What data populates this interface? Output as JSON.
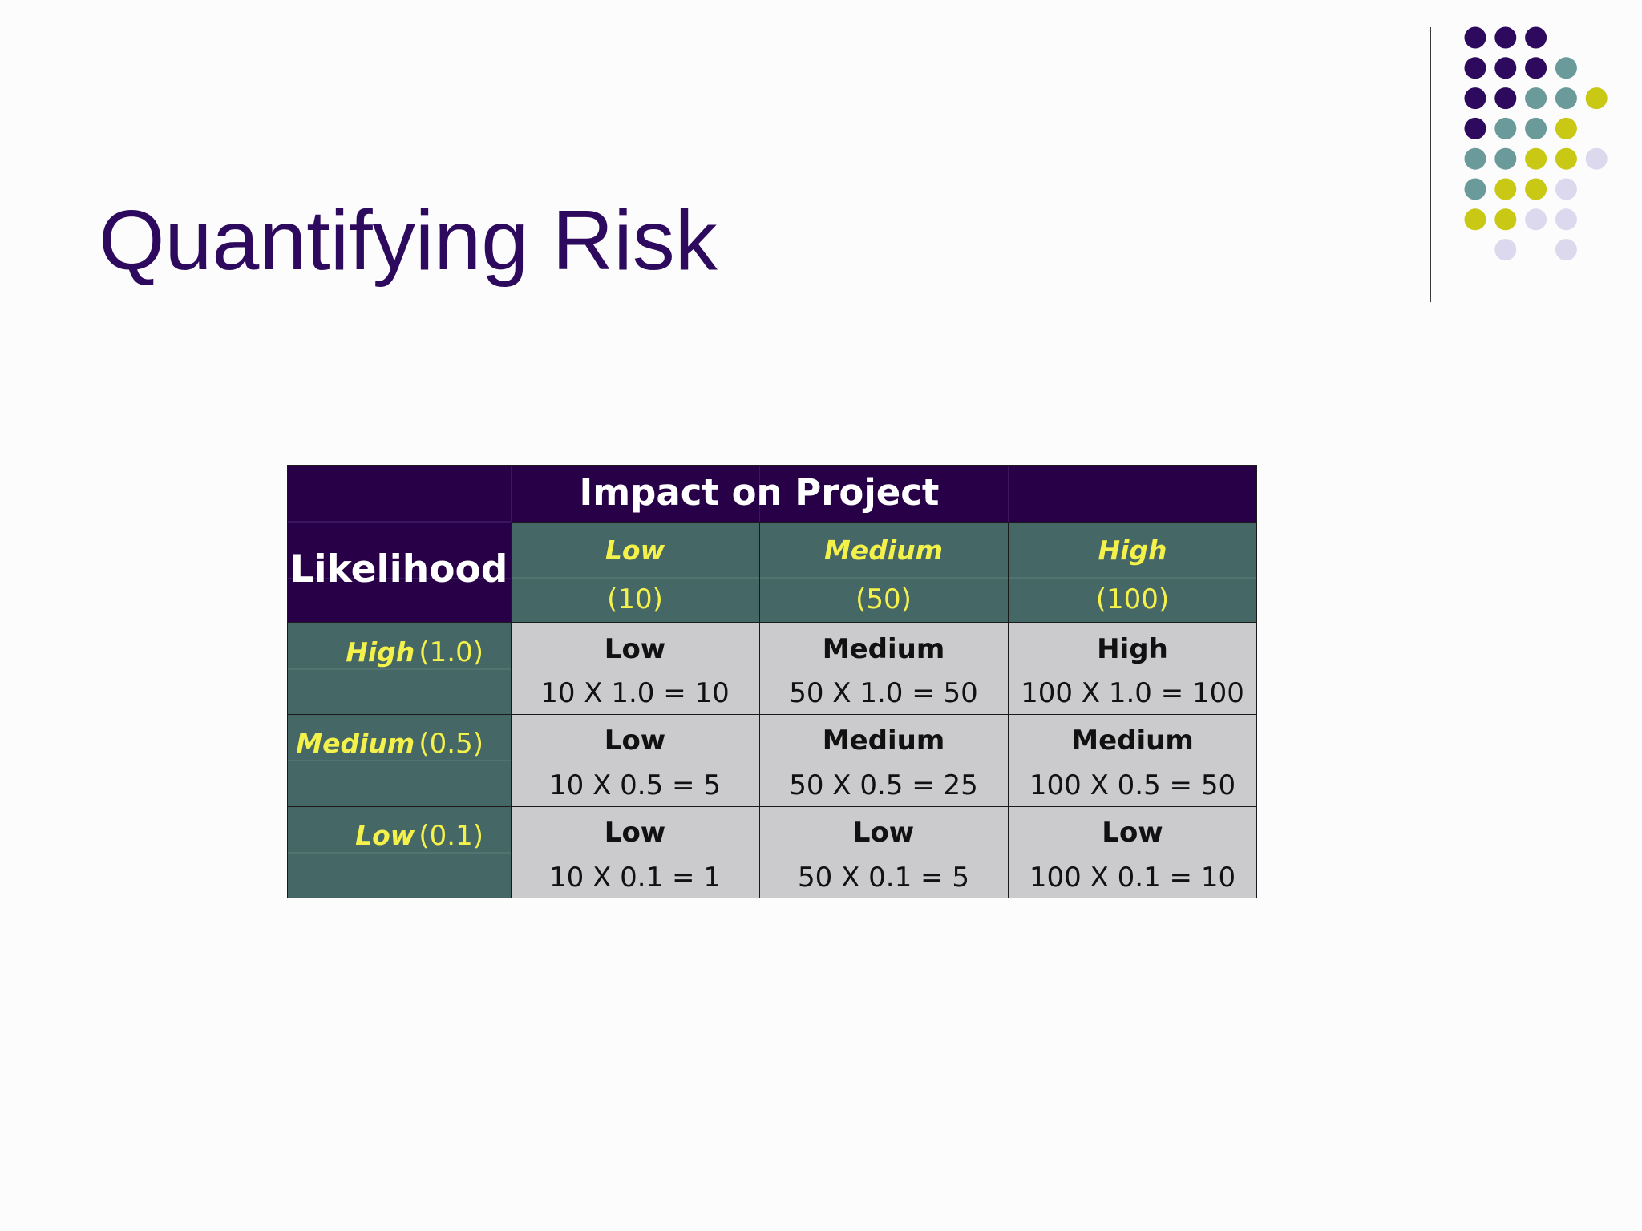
{
  "slide": {
    "title": "Quantifying Risk"
  },
  "table": {
    "header": {
      "impact_label": "Impact on Project",
      "likelihood_label": "Likelihood"
    },
    "impact_columns": [
      {
        "level": "Low",
        "value": "(10)"
      },
      {
        "level": "Medium",
        "value": "(50)"
      },
      {
        "level": "High",
        "value": "(100)"
      }
    ],
    "rows": [
      {
        "likelihood": "High",
        "likelihood_value": "(1.0)",
        "cells": [
          {
            "rating": "Low",
            "calc": "10 X 1.0 = 10"
          },
          {
            "rating": "Medium",
            "calc": "50 X 1.0 = 50"
          },
          {
            "rating": "High",
            "calc": "100 X 1.0 = 100"
          }
        ]
      },
      {
        "likelihood": "Medium",
        "likelihood_value": "(0.5)",
        "cells": [
          {
            "rating": "Low",
            "calc": "10 X 0.5 = 5"
          },
          {
            "rating": "Medium",
            "calc": "50 X 0.5 = 25"
          },
          {
            "rating": "Medium",
            "calc": "100 X 0.5 = 50"
          }
        ]
      },
      {
        "likelihood": "Low",
        "likelihood_value": "(0.1)",
        "cells": [
          {
            "rating": "Low",
            "calc": "10 X 0.1 = 1"
          },
          {
            "rating": "Low",
            "calc": "50 X 0.1 = 5"
          },
          {
            "rating": "Low",
            "calc": "100 X 0.1 = 10"
          }
        ]
      }
    ]
  },
  "colors": {
    "title": "#2e0a5e",
    "header_purple": "#270047",
    "teal": "#456766",
    "cell_gray": "#cbcacd",
    "accent_yellow": "#f3f14a",
    "dot_purple": "#2e0a5e",
    "dot_teal": "#6b9a9a",
    "dot_yellow": "#c8c815",
    "dot_lavender": "#dcd9ee"
  }
}
